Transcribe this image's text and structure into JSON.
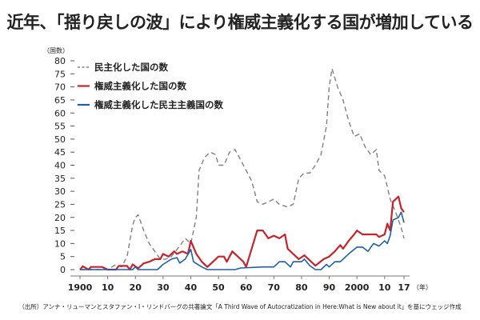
{
  "title": "近年、「揺り戻しの波」により権威主義化する国が増加している",
  "source": "（出所）アンナ・リューマンとスタファン・I・リンドバーグの共著論文「A Third Wave of Autocratization in Here:What is New about it」を基にウェッジ作成",
  "chart_data": {
    "type": "line",
    "title": "近年、「揺り戻しの波」により権威主義化する国が増加している",
    "ylabel": "（国数）",
    "xlabel": "（年）",
    "ylim": [
      0,
      80
    ],
    "xlim": [
      1900,
      2017
    ],
    "yticks": [
      0,
      5,
      10,
      15,
      20,
      25,
      30,
      35,
      40,
      45,
      50,
      55,
      60,
      65,
      70,
      75,
      80
    ],
    "xticks": [
      1900,
      1910,
      1920,
      1930,
      1940,
      1950,
      1960,
      1970,
      1980,
      1990,
      2000,
      2010,
      2017
    ],
    "xtick_labels": [
      "1900",
      "10",
      "20",
      "30",
      "40",
      "50",
      "60",
      "70",
      "80",
      "90",
      "2000",
      "10",
      "17"
    ],
    "grid": false,
    "legend_position": "top-left",
    "series": [
      {
        "name": "民主化した国の数",
        "color": "#808080",
        "style": "dashed",
        "x": [
          1900,
          1905,
          1910,
          1913,
          1915,
          1917,
          1919,
          1920,
          1921,
          1923,
          1925,
          1927,
          1929,
          1931,
          1933,
          1936,
          1938,
          1940,
          1942,
          1943,
          1945,
          1947,
          1949,
          1950,
          1952,
          1954,
          1956,
          1957,
          1958,
          1960,
          1962,
          1964,
          1966,
          1968,
          1970,
          1972,
          1975,
          1977,
          1979,
          1981,
          1983,
          1985,
          1987,
          1989,
          1990,
          1991,
          1993,
          1995,
          1997,
          1999,
          2001,
          2003,
          2005,
          2007,
          2008,
          2010,
          2012,
          2014,
          2016,
          2017
        ],
        "y": [
          0,
          0,
          0,
          2,
          1,
          5,
          17,
          20,
          21,
          15,
          10,
          7,
          4,
          4,
          5,
          9,
          12,
          10,
          20,
          38,
          43,
          45,
          44,
          40,
          40,
          45,
          46,
          44,
          42,
          38,
          34,
          26,
          25,
          26,
          27,
          25,
          24,
          25,
          35,
          37,
          37,
          40,
          44,
          55,
          70,
          77,
          70,
          65,
          57,
          51,
          52,
          47,
          44,
          46,
          38,
          36,
          27,
          22,
          16,
          12
        ]
      },
      {
        "name": "権威主義化した国の数",
        "color": "#c8232c",
        "style": "solid",
        "x": [
          1900,
          1901,
          1903,
          1904,
          1908,
          1910,
          1913,
          1914,
          1917,
          1918,
          1919,
          1921,
          1923,
          1925,
          1927,
          1929,
          1930,
          1932,
          1934,
          1935,
          1937,
          1939,
          1940,
          1942,
          1944,
          1946,
          1948,
          1950,
          1952,
          1953,
          1955,
          1957,
          1959,
          1960,
          1962,
          1964,
          1966,
          1968,
          1970,
          1972,
          1974,
          1975,
          1977,
          1979,
          1981,
          1983,
          1985,
          1988,
          1990,
          1992,
          1994,
          1995,
          1997,
          1999,
          2000,
          2002,
          2007,
          2008,
          2010,
          2011,
          2012,
          2013,
          2015,
          2016,
          2017
        ],
        "y": [
          0,
          1.3,
          0,
          1,
          1,
          0,
          0,
          1.4,
          1.4,
          0,
          2,
          0.5,
          2.4,
          3,
          4,
          4,
          6,
          5,
          7,
          6,
          7,
          6,
          11,
          6,
          3,
          1,
          3,
          5,
          5,
          3,
          7,
          5,
          3,
          1,
          8,
          15,
          15,
          12,
          13,
          12,
          13.5,
          8,
          6,
          4,
          5.5,
          3.5,
          1.5,
          4,
          5,
          7,
          9.4,
          8,
          11,
          13.5,
          15,
          13.5,
          13.5,
          12.5,
          13.5,
          17.6,
          15,
          26,
          28,
          23.5,
          22
        ]
      },
      {
        "name": "権威主義化した民主主義国の数",
        "color": "#1f5fa8",
        "style": "solid",
        "x": [
          1900,
          1919,
          1920,
          1921,
          1928,
          1930,
          1933,
          1935,
          1936,
          1938,
          1940,
          1941,
          1944,
          1946,
          1956,
          1958,
          1966,
          1970,
          1972,
          1974,
          1976,
          1977,
          1980,
          1981,
          1983,
          1985,
          1987,
          1989,
          1990,
          1992,
          1994,
          1997,
          2000,
          2002,
          2004,
          2006,
          2008,
          2010,
          2011,
          2012,
          2013,
          2015,
          2016,
          2017
        ],
        "y": [
          0,
          0,
          1,
          0,
          0,
          2,
          4,
          4.6,
          2.5,
          4,
          7.7,
          3,
          1,
          0,
          0,
          0.6,
          1,
          1,
          3,
          3,
          1,
          3,
          3,
          4,
          1.5,
          0,
          0,
          2,
          1,
          3,
          3,
          6,
          8.6,
          8.6,
          7,
          10,
          9,
          11,
          10,
          13,
          19,
          20,
          22,
          18
        ]
      }
    ]
  }
}
